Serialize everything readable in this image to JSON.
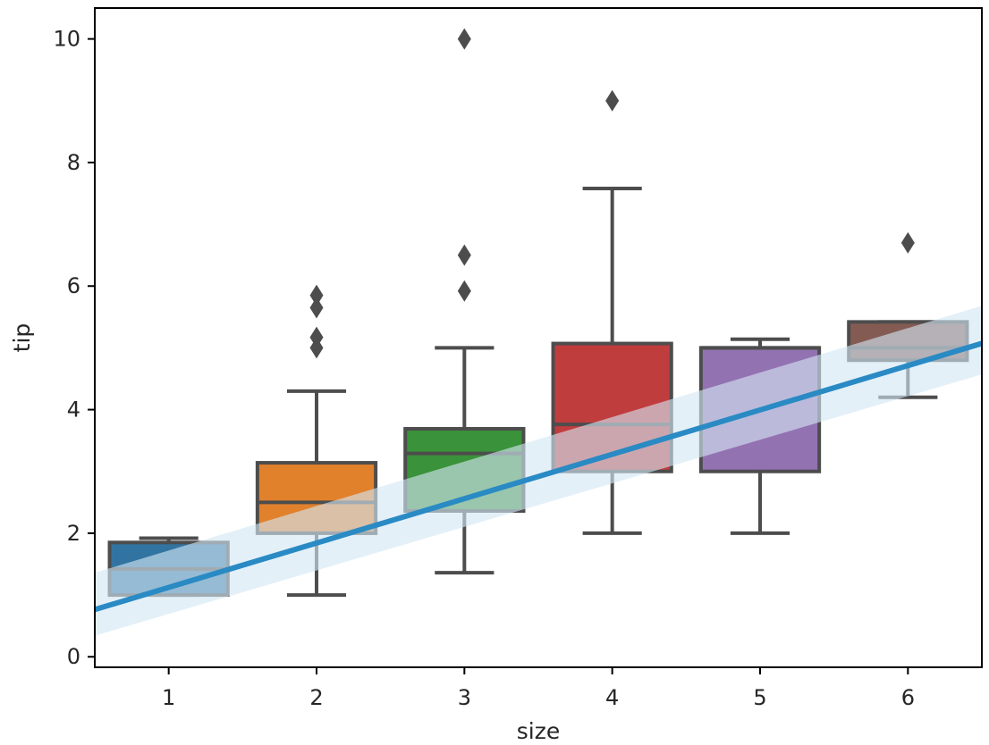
{
  "chart_data": {
    "type": "box",
    "title": "",
    "xlabel": "size",
    "ylabel": "tip",
    "categories": [
      "1",
      "2",
      "3",
      "4",
      "5",
      "6"
    ],
    "x_values": [
      1,
      2,
      3,
      4,
      5,
      6
    ],
    "xlim": [
      0.5,
      6.5
    ],
    "ylim": [
      -0.17,
      10.5
    ],
    "yticks": [
      0,
      2,
      4,
      6,
      8,
      10
    ],
    "yticks_labels": [
      "0",
      "2",
      "4",
      "6",
      "8",
      "10"
    ],
    "boxes": [
      {
        "category": "1",
        "whisker_low": 1.0,
        "q1": 1.0,
        "median": 1.42,
        "q3": 1.85,
        "whisker_high": 1.92,
        "outliers": [],
        "color": "#3274a1"
      },
      {
        "category": "2",
        "whisker_low": 1.0,
        "q1": 2.0,
        "median": 2.5,
        "q3": 3.14,
        "whisker_high": 4.3,
        "outliers": [
          5.85,
          5.65,
          5.17,
          5.0
        ],
        "color": "#e1812c"
      },
      {
        "category": "3",
        "whisker_low": 1.36,
        "q1": 2.36,
        "median": 3.29,
        "q3": 3.69,
        "whisker_high": 5.0,
        "outliers": [
          10.0,
          6.5,
          5.92
        ],
        "color": "#3a923a"
      },
      {
        "category": "4",
        "whisker_low": 2.0,
        "q1": 3.0,
        "median": 3.76,
        "q3": 5.07,
        "whisker_high": 7.58,
        "outliers": [
          9.0
        ],
        "color": "#c03d3e"
      },
      {
        "category": "5",
        "whisker_low": 2.0,
        "q1": 3.0,
        "median": 5.0,
        "q3": 5.0,
        "whisker_high": 5.14,
        "outliers": [],
        "color": "#9372b2"
      },
      {
        "category": "6",
        "whisker_low": 4.2,
        "q1": 4.8,
        "median": 5.0,
        "q3": 5.42,
        "whisker_high": 5.42,
        "outliers": [
          6.7
        ],
        "color": "#845b53"
      }
    ],
    "regression": {
      "intercept": 0.405,
      "slope": 0.718,
      "ci_upper_at_xlim": [
        1.36,
        5.68
      ],
      "ci_lower_at_xlim": [
        0.34,
        4.57
      ],
      "color": "#2a8ac4",
      "ci_color": "#d4e7f3"
    },
    "grid": false,
    "legend": "none"
  }
}
